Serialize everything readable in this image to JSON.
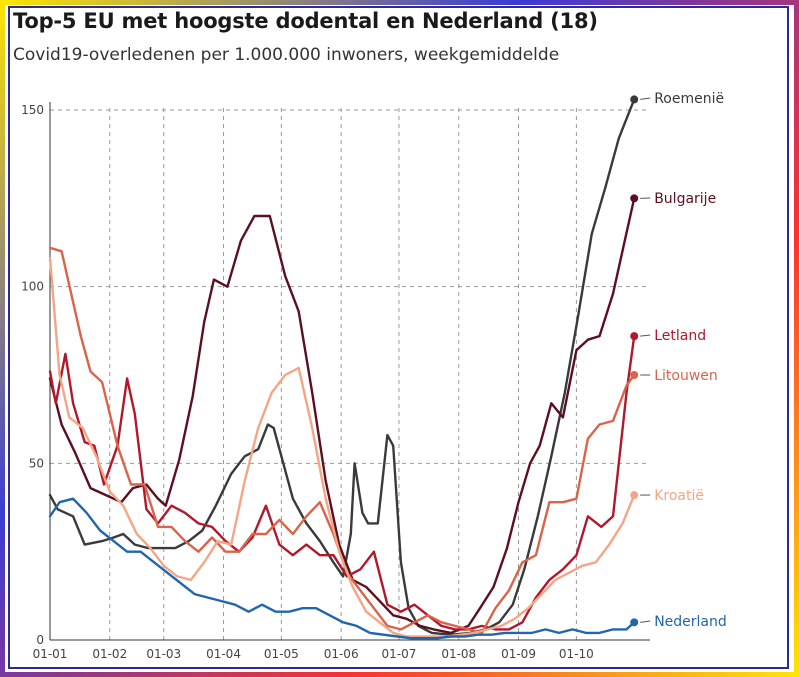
{
  "chart_data": {
    "type": "line",
    "title": "Top-5 EU met hoogste dodental en Nederland (18)",
    "subtitle": "Covid19-overledenen per 1.000.000 inwoners, weekgemiddelde",
    "xlabel": "",
    "ylabel": "",
    "ylim": [
      0,
      150
    ],
    "xlim": [
      "2021-01-01",
      "2021-11-03"
    ],
    "yticks": [
      0,
      50,
      100,
      150
    ],
    "xticks": [
      "01-01",
      "01-02",
      "01-03",
      "01-04",
      "01-05",
      "01-06",
      "01-07",
      "01-08",
      "01-09",
      "01-10"
    ],
    "grid": true,
    "legend_placement": "right, at line ends",
    "series": [
      {
        "name": "Roemenië",
        "color": "#3a3a3a",
        "points": [
          [
            "2021-01-01",
            41
          ],
          [
            "2021-01-05",
            37
          ],
          [
            "2021-01-13",
            35
          ],
          [
            "2021-01-19",
            27
          ],
          [
            "2021-01-28",
            28
          ],
          [
            "2021-02-03",
            29
          ],
          [
            "2021-02-08",
            30
          ],
          [
            "2021-02-14",
            27
          ],
          [
            "2021-02-21",
            26
          ],
          [
            "2021-02-28",
            26
          ],
          [
            "2021-03-07",
            26
          ],
          [
            "2021-03-14",
            28
          ],
          [
            "2021-03-21",
            31
          ],
          [
            "2021-03-28",
            38
          ],
          [
            "2021-04-05",
            47
          ],
          [
            "2021-04-12",
            52
          ],
          [
            "2021-04-19",
            54
          ],
          [
            "2021-04-24",
            61
          ],
          [
            "2021-04-27",
            60
          ],
          [
            "2021-05-01",
            52
          ],
          [
            "2021-05-07",
            40
          ],
          [
            "2021-05-14",
            33
          ],
          [
            "2021-05-21",
            28
          ],
          [
            "2021-05-28",
            22
          ],
          [
            "2021-06-02",
            18
          ],
          [
            "2021-06-06",
            30
          ],
          [
            "2021-06-08",
            50
          ],
          [
            "2021-06-12",
            36
          ],
          [
            "2021-06-15",
            33
          ],
          [
            "2021-06-20",
            33
          ],
          [
            "2021-06-25",
            58
          ],
          [
            "2021-06-28",
            55
          ],
          [
            "2021-07-02",
            22
          ],
          [
            "2021-07-06",
            9
          ],
          [
            "2021-07-11",
            4
          ],
          [
            "2021-07-18",
            2
          ],
          [
            "2021-07-28",
            1.5
          ],
          [
            "2021-08-07",
            2
          ],
          [
            "2021-08-15",
            3
          ],
          [
            "2021-08-22",
            5
          ],
          [
            "2021-08-29",
            10
          ],
          [
            "2021-09-04",
            20
          ],
          [
            "2021-09-11",
            35
          ],
          [
            "2021-09-18",
            52
          ],
          [
            "2021-09-25",
            70
          ],
          [
            "2021-10-02",
            92
          ],
          [
            "2021-10-09",
            115
          ],
          [
            "2021-10-16",
            128
          ],
          [
            "2021-10-23",
            142
          ],
          [
            "2021-10-31",
            153
          ]
        ]
      },
      {
        "name": "Bulgarije",
        "color": "#5c0f1f",
        "points": [
          [
            "2021-01-01",
            74
          ],
          [
            "2021-01-07",
            61
          ],
          [
            "2021-01-14",
            53
          ],
          [
            "2021-01-22",
            43
          ],
          [
            "2021-01-30",
            41
          ],
          [
            "2021-02-07",
            39
          ],
          [
            "2021-02-13",
            43
          ],
          [
            "2021-02-20",
            44
          ],
          [
            "2021-02-26",
            40
          ],
          [
            "2021-03-02",
            38
          ],
          [
            "2021-03-09",
            51
          ],
          [
            "2021-03-16",
            69
          ],
          [
            "2021-03-22",
            90
          ],
          [
            "2021-03-27",
            102
          ],
          [
            "2021-04-03",
            100
          ],
          [
            "2021-04-10",
            113
          ],
          [
            "2021-04-17",
            120
          ],
          [
            "2021-04-25",
            120
          ],
          [
            "2021-05-03",
            103
          ],
          [
            "2021-05-10",
            93
          ],
          [
            "2021-05-17",
            70
          ],
          [
            "2021-05-24",
            45
          ],
          [
            "2021-05-31",
            27
          ],
          [
            "2021-06-07",
            17
          ],
          [
            "2021-06-14",
            15
          ],
          [
            "2021-06-21",
            11
          ],
          [
            "2021-06-28",
            7
          ],
          [
            "2021-07-05",
            6
          ],
          [
            "2021-07-12",
            4
          ],
          [
            "2021-07-19",
            3
          ],
          [
            "2021-07-28",
            2
          ],
          [
            "2021-08-06",
            4
          ],
          [
            "2021-08-12",
            9
          ],
          [
            "2021-08-19",
            15
          ],
          [
            "2021-08-26",
            26
          ],
          [
            "2021-09-01",
            39
          ],
          [
            "2021-09-07",
            50
          ],
          [
            "2021-09-12",
            55
          ],
          [
            "2021-09-18",
            67
          ],
          [
            "2021-09-24",
            63
          ],
          [
            "2021-10-01",
            82
          ],
          [
            "2021-10-07",
            85
          ],
          [
            "2021-10-13",
            86
          ],
          [
            "2021-10-20",
            98
          ],
          [
            "2021-10-31",
            125
          ]
        ]
      },
      {
        "name": "Letland",
        "color": "#b0182c",
        "points": [
          [
            "2021-01-01",
            76
          ],
          [
            "2021-01-04",
            67
          ],
          [
            "2021-01-09",
            81
          ],
          [
            "2021-01-13",
            67
          ],
          [
            "2021-01-19",
            56
          ],
          [
            "2021-01-24",
            55
          ],
          [
            "2021-01-29",
            44
          ],
          [
            "2021-02-05",
            55
          ],
          [
            "2021-02-10",
            74
          ],
          [
            "2021-02-14",
            64
          ],
          [
            "2021-02-20",
            37
          ],
          [
            "2021-02-26",
            33
          ],
          [
            "2021-03-05",
            38
          ],
          [
            "2021-03-12",
            36
          ],
          [
            "2021-03-19",
            33
          ],
          [
            "2021-03-26",
            32
          ],
          [
            "2021-04-02",
            28
          ],
          [
            "2021-04-09",
            25
          ],
          [
            "2021-04-16",
            29
          ],
          [
            "2021-04-23",
            38
          ],
          [
            "2021-04-30",
            27
          ],
          [
            "2021-05-07",
            24
          ],
          [
            "2021-05-14",
            27
          ],
          [
            "2021-05-21",
            24
          ],
          [
            "2021-05-28",
            24
          ],
          [
            "2021-06-04",
            18
          ],
          [
            "2021-06-11",
            20
          ],
          [
            "2021-06-18",
            25
          ],
          [
            "2021-06-25",
            10
          ],
          [
            "2021-07-02",
            8
          ],
          [
            "2021-07-09",
            10
          ],
          [
            "2021-07-16",
            7
          ],
          [
            "2021-07-23",
            4
          ],
          [
            "2021-07-30",
            3
          ],
          [
            "2021-08-06",
            3
          ],
          [
            "2021-08-13",
            4
          ],
          [
            "2021-08-20",
            3
          ],
          [
            "2021-08-27",
            3
          ],
          [
            "2021-09-03",
            5
          ],
          [
            "2021-09-10",
            12
          ],
          [
            "2021-09-17",
            17
          ],
          [
            "2021-09-24",
            20
          ],
          [
            "2021-10-01",
            24
          ],
          [
            "2021-10-07",
            35
          ],
          [
            "2021-10-14",
            32
          ],
          [
            "2021-10-20",
            35
          ],
          [
            "2021-10-27",
            70
          ],
          [
            "2021-10-31",
            86
          ]
        ]
      },
      {
        "name": "Litouwen",
        "color": "#d9644a",
        "points": [
          [
            "2021-01-01",
            111
          ],
          [
            "2021-01-07",
            110
          ],
          [
            "2021-01-12",
            98
          ],
          [
            "2021-01-17",
            86
          ],
          [
            "2021-01-22",
            76
          ],
          [
            "2021-01-28",
            73
          ],
          [
            "2021-02-05",
            55
          ],
          [
            "2021-02-12",
            44
          ],
          [
            "2021-02-19",
            44
          ],
          [
            "2021-02-26",
            32
          ],
          [
            "2021-03-05",
            32
          ],
          [
            "2021-03-12",
            28
          ],
          [
            "2021-03-19",
            25
          ],
          [
            "2021-03-26",
            29
          ],
          [
            "2021-04-02",
            25
          ],
          [
            "2021-04-09",
            25
          ],
          [
            "2021-04-16",
            30
          ],
          [
            "2021-04-23",
            30
          ],
          [
            "2021-04-30",
            34
          ],
          [
            "2021-05-07",
            30
          ],
          [
            "2021-05-14",
            35
          ],
          [
            "2021-05-21",
            39
          ],
          [
            "2021-05-28",
            30
          ],
          [
            "2021-06-04",
            19
          ],
          [
            "2021-06-11",
            14
          ],
          [
            "2021-06-18",
            9
          ],
          [
            "2021-06-25",
            4
          ],
          [
            "2021-07-02",
            3
          ],
          [
            "2021-07-09",
            5
          ],
          [
            "2021-07-16",
            7
          ],
          [
            "2021-07-23",
            5
          ],
          [
            "2021-07-30",
            4
          ],
          [
            "2021-08-06",
            3
          ],
          [
            "2021-08-13",
            2
          ],
          [
            "2021-08-20",
            9
          ],
          [
            "2021-08-27",
            14
          ],
          [
            "2021-09-03",
            22
          ],
          [
            "2021-09-10",
            24
          ],
          [
            "2021-09-17",
            39
          ],
          [
            "2021-09-24",
            39
          ],
          [
            "2021-10-01",
            40
          ],
          [
            "2021-10-07",
            57
          ],
          [
            "2021-10-13",
            61
          ],
          [
            "2021-10-20",
            62
          ],
          [
            "2021-10-27",
            72
          ],
          [
            "2021-10-31",
            75
          ]
        ]
      },
      {
        "name": "Kroatië",
        "color": "#f4a585",
        "points": [
          [
            "2021-01-01",
            108
          ],
          [
            "2021-01-06",
            75
          ],
          [
            "2021-01-11",
            63
          ],
          [
            "2021-01-18",
            60
          ],
          [
            "2021-01-25",
            52
          ],
          [
            "2021-02-01",
            42
          ],
          [
            "2021-02-08",
            38
          ],
          [
            "2021-02-15",
            30
          ],
          [
            "2021-02-22",
            26
          ],
          [
            "2021-03-01",
            21
          ],
          [
            "2021-03-08",
            18
          ],
          [
            "2021-03-15",
            17
          ],
          [
            "2021-03-22",
            22
          ],
          [
            "2021-03-29",
            28
          ],
          [
            "2021-04-05",
            27
          ],
          [
            "2021-04-12",
            45
          ],
          [
            "2021-04-19",
            60
          ],
          [
            "2021-04-26",
            70
          ],
          [
            "2021-05-03",
            75
          ],
          [
            "2021-05-10",
            77
          ],
          [
            "2021-05-17",
            60
          ],
          [
            "2021-05-24",
            40
          ],
          [
            "2021-05-31",
            25
          ],
          [
            "2021-06-07",
            15
          ],
          [
            "2021-06-14",
            8
          ],
          [
            "2021-06-21",
            5
          ],
          [
            "2021-06-28",
            2
          ],
          [
            "2021-07-05",
            1
          ],
          [
            "2021-07-12",
            1
          ],
          [
            "2021-07-19",
            1
          ],
          [
            "2021-07-26",
            1
          ],
          [
            "2021-08-02",
            1.5
          ],
          [
            "2021-08-09",
            2
          ],
          [
            "2021-08-16",
            3
          ],
          [
            "2021-08-23",
            4
          ],
          [
            "2021-08-30",
            6
          ],
          [
            "2021-09-06",
            9
          ],
          [
            "2021-09-13",
            13
          ],
          [
            "2021-09-20",
            17
          ],
          [
            "2021-09-27",
            19
          ],
          [
            "2021-10-04",
            21
          ],
          [
            "2021-10-11",
            22
          ],
          [
            "2021-10-18",
            27
          ],
          [
            "2021-10-25",
            33
          ],
          [
            "2021-10-31",
            41
          ]
        ]
      },
      {
        "name": "Nederland",
        "color": "#2166ac",
        "points": [
          [
            "2021-01-01",
            35
          ],
          [
            "2021-01-06",
            39
          ],
          [
            "2021-01-13",
            40
          ],
          [
            "2021-01-20",
            36
          ],
          [
            "2021-01-27",
            31
          ],
          [
            "2021-02-03",
            28
          ],
          [
            "2021-02-10",
            25
          ],
          [
            "2021-02-17",
            25
          ],
          [
            "2021-02-24",
            22
          ],
          [
            "2021-03-03",
            19
          ],
          [
            "2021-03-10",
            16
          ],
          [
            "2021-03-17",
            13
          ],
          [
            "2021-03-24",
            12
          ],
          [
            "2021-03-31",
            11
          ],
          [
            "2021-04-07",
            10
          ],
          [
            "2021-04-14",
            8
          ],
          [
            "2021-04-21",
            10
          ],
          [
            "2021-04-28",
            8
          ],
          [
            "2021-05-05",
            8
          ],
          [
            "2021-05-12",
            9
          ],
          [
            "2021-05-19",
            9
          ],
          [
            "2021-05-26",
            7
          ],
          [
            "2021-06-02",
            5
          ],
          [
            "2021-06-09",
            4
          ],
          [
            "2021-06-16",
            2
          ],
          [
            "2021-06-23",
            1.5
          ],
          [
            "2021-06-30",
            1
          ],
          [
            "2021-07-07",
            0.5
          ],
          [
            "2021-07-14",
            0.5
          ],
          [
            "2021-07-21",
            0.5
          ],
          [
            "2021-07-28",
            1
          ],
          [
            "2021-08-04",
            1
          ],
          [
            "2021-08-11",
            1.5
          ],
          [
            "2021-08-18",
            1.5
          ],
          [
            "2021-08-25",
            2
          ],
          [
            "2021-09-01",
            2
          ],
          [
            "2021-09-08",
            2
          ],
          [
            "2021-09-15",
            3
          ],
          [
            "2021-09-22",
            2
          ],
          [
            "2021-09-29",
            3
          ],
          [
            "2021-10-06",
            2
          ],
          [
            "2021-10-13",
            2
          ],
          [
            "2021-10-20",
            3
          ],
          [
            "2021-10-27",
            3
          ],
          [
            "2021-10-31",
            5
          ]
        ]
      }
    ]
  }
}
